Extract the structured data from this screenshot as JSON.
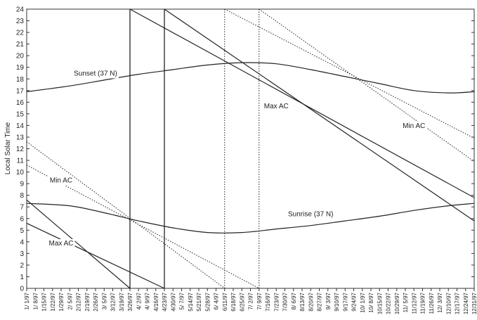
{
  "chart_data": {
    "type": "line",
    "title": "",
    "xlabel": "",
    "ylabel": "Local Solar Time",
    "ylim": [
      0,
      24
    ],
    "y_ticks": [
      0,
      1,
      2,
      3,
      4,
      5,
      6,
      7,
      8,
      9,
      10,
      11,
      12,
      13,
      14,
      15,
      16,
      17,
      18,
      19,
      20,
      21,
      22,
      23,
      24
    ],
    "x_tick_labels": [
      "1/ 1/97",
      "1/ 8/97",
      "1/15/97",
      "1/22/97",
      "1/29/97",
      "2/ 5/97",
      "2/12/97",
      "2/19/97",
      "2/26/97",
      "3/ 5/97",
      "3/12/97",
      "3/19/97",
      "3/26/97",
      "4/ 2/97",
      "4/ 9/97",
      "4/16/97",
      "4/23/97",
      "4/30/97",
      "5/ 7/97",
      "5/14/97",
      "5/21/97",
      "5/28/97",
      "6/ 4/97",
      "6/11/97",
      "6/18/97",
      "6/25/97",
      "7/ 2/97",
      "7/ 9/97",
      "7/16/97",
      "7/23/97",
      "7/30/97",
      "8/ 6/97",
      "8/13/97",
      "8/20/97",
      "8/27/97",
      "9/ 3/97",
      "9/10/97",
      "9/17/97",
      "9/24/97",
      "10/ 1/97",
      "10/ 8/97",
      "10/15/97",
      "10/22/97",
      "10/29/97",
      "11/ 5/97",
      "11/12/97",
      "11/19/97",
      "11/26/97",
      "12/ 3/97",
      "12/10/97",
      "12/17/97",
      "12/24/97",
      "12/31/97"
    ],
    "grid": false,
    "series": [
      {
        "name": "Sunset (37 N)",
        "style": "solid",
        "x": [
          "1/ 1/97",
          "2/ 5/97",
          "3/ 5/97",
          "4/ 2/97",
          "4/30/97",
          "5/28/97",
          "6/25/97",
          "7/23/97",
          "8/20/97",
          "9/17/97",
          "10/15/97",
          "11/12/97",
          "12/10/97",
          "12/31/97"
        ],
        "y": [
          16.9,
          17.4,
          17.9,
          18.4,
          18.8,
          19.2,
          19.4,
          19.3,
          18.8,
          18.2,
          17.6,
          17.0,
          16.8,
          16.9
        ]
      },
      {
        "name": "Sunrise (37 N)",
        "style": "solid",
        "x": [
          "1/ 1/97",
          "2/ 5/97",
          "3/ 5/97",
          "4/ 2/97",
          "4/30/97",
          "5/28/97",
          "6/25/97",
          "7/23/97",
          "8/20/97",
          "9/17/97",
          "10/15/97",
          "11/12/97",
          "12/10/97",
          "12/31/97"
        ],
        "y": [
          7.3,
          7.1,
          6.5,
          5.8,
          5.2,
          4.8,
          4.8,
          5.1,
          5.4,
          5.8,
          6.2,
          6.7,
          7.1,
          7.3
        ]
      },
      {
        "name": "Max AC",
        "style": "solid",
        "x": [
          "1/ 1/97",
          "3/26/97"
        ],
        "y": [
          7.6,
          0
        ]
      },
      {
        "name": "Max AC",
        "style": "solid",
        "x": [
          "1/ 1/97",
          "4/23/97"
        ],
        "y": [
          5.6,
          0
        ]
      },
      {
        "name": "Max AC",
        "style": "solid",
        "x": [
          "3/26/97",
          "12/31/97"
        ],
        "y": [
          24,
          7.8
        ]
      },
      {
        "name": "Max AC",
        "style": "solid",
        "x": [
          "4/23/97",
          "12/31/97"
        ],
        "y": [
          24,
          5.8
        ]
      },
      {
        "name": "Min AC",
        "style": "dotted",
        "x": [
          "1/ 1/97",
          "6/11/97"
        ],
        "y": [
          12.6,
          0
        ]
      },
      {
        "name": "Min AC",
        "style": "dotted",
        "x": [
          "1/ 1/97",
          "7/ 9/97"
        ],
        "y": [
          10.6,
          0
        ]
      },
      {
        "name": "Min AC",
        "style": "dotted",
        "x": [
          "6/11/97",
          "12/31/97"
        ],
        "y": [
          24,
          12.9
        ]
      },
      {
        "name": "Min AC",
        "style": "dotted",
        "x": [
          "7/ 9/97",
          "12/31/97"
        ],
        "y": [
          24,
          10.9
        ]
      }
    ],
    "vertical_lines": [
      {
        "x": "3/26/97",
        "style": "solid"
      },
      {
        "x": "4/23/97",
        "style": "solid"
      },
      {
        "x": "6/11/97",
        "style": "dotted"
      },
      {
        "x": "7/ 9/97",
        "style": "dotted"
      }
    ],
    "annotations": [
      {
        "text": "Sunset (37 N)",
        "x": "2/26/97",
        "y": 18.5
      },
      {
        "text": "Max AC",
        "x": "7/23/97",
        "y": 15.7
      },
      {
        "text": "Min AC",
        "x": "11/12/97",
        "y": 14.0
      },
      {
        "text": "Min AC",
        "x": "1/29/97",
        "y": 9.3
      },
      {
        "text": "Sunrise (37 N)",
        "x": "8/20/97",
        "y": 6.4
      },
      {
        "text": "Max AC",
        "x": "1/29/97",
        "y": 3.9
      }
    ],
    "colors": {
      "line": "#222222",
      "frame": "#333333"
    }
  }
}
